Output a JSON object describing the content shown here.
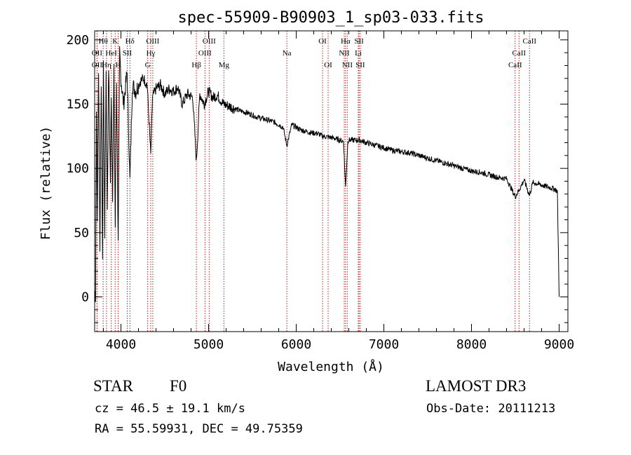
{
  "chart_data": {
    "type": "line",
    "title": "spec-55909-B90903_1_sp03-033.fits",
    "xlabel": "Wavelength (Å)",
    "ylabel": "Flux (relative)",
    "xlim": [
      3700,
      9100
    ],
    "ylim": [
      -27,
      207
    ],
    "xticks": [
      4000,
      5000,
      6000,
      7000,
      8000,
      9000
    ],
    "yticks": [
      0,
      50,
      100,
      150,
      200
    ],
    "line_color": "#000000",
    "marker_color": "#b22222",
    "series": [
      {
        "name": "flux",
        "x": [
          3700,
          3710,
          3720,
          3730,
          3745,
          3760,
          3775,
          3790,
          3800,
          3815,
          3830,
          3845,
          3860,
          3880,
          3890,
          3905,
          3920,
          3935,
          3950,
          3969,
          3985,
          4000,
          4030,
          4070,
          4102,
          4130,
          4170,
          4220,
          4260,
          4300,
          4340,
          4360,
          4400,
          4450,
          4500,
          4550,
          4600,
          4650,
          4700,
          4760,
          4820,
          4861,
          4900,
          4950,
          5000,
          5050,
          5100,
          5170,
          5250,
          5350,
          5450,
          5550,
          5650,
          5750,
          5850,
          5893,
          5950,
          6050,
          6150,
          6250,
          6300,
          6400,
          6450,
          6500,
          6540,
          6563,
          6590,
          6650,
          6720,
          6800,
          6900,
          7000,
          7100,
          7200,
          7300,
          7400,
          7500,
          7600,
          7700,
          7800,
          7900,
          8000,
          8100,
          8200,
          8300,
          8400,
          8498,
          8542,
          8600,
          8662,
          8700,
          8750,
          8800,
          8850,
          8900,
          8950,
          8980,
          8990,
          9000
        ],
        "y": [
          5,
          0,
          150,
          60,
          180,
          40,
          170,
          30,
          185,
          50,
          175,
          70,
          180,
          90,
          160,
          80,
          175,
          55,
          170,
          40,
          190,
          170,
          150,
          175,
          90,
          165,
          160,
          168,
          170,
          165,
          110,
          155,
          162,
          165,
          158,
          162,
          160,
          163,
          150,
          158,
          155,
          105,
          158,
          150,
          160,
          155,
          157,
          150,
          148,
          145,
          143,
          140,
          138,
          136,
          132,
          118,
          134,
          130,
          128,
          127,
          125,
          124,
          123,
          122,
          121,
          85,
          122,
          122,
          122,
          120,
          118,
          116,
          114,
          113,
          112,
          110,
          108,
          106,
          104,
          102,
          100,
          98,
          97,
          95,
          93,
          92,
          78,
          83,
          91,
          79,
          89,
          88,
          87,
          86,
          85,
          84,
          82,
          40,
          0
        ]
      }
    ],
    "annotations": [
      {
        "label": "Hθ",
        "wavelength": 3797,
        "row": 1
      },
      {
        "label": "K",
        "wavelength": 3934,
        "row": 1
      },
      {
        "label": "Hδ",
        "wavelength": 4102,
        "row": 1
      },
      {
        "label": "OIII",
        "wavelength": 4363,
        "row": 1
      },
      {
        "label": "OIII",
        "wavelength": 5007,
        "row": 1
      },
      {
        "label": "OI",
        "wavelength": 6300,
        "row": 1
      },
      {
        "label": "Hα",
        "wavelength": 6563,
        "row": 1
      },
      {
        "label": "SII",
        "wavelength": 6717,
        "row": 1
      },
      {
        "label": "CaII",
        "wavelength": 8662,
        "row": 1
      },
      {
        "label": "OII",
        "wavelength": 3727,
        "row": 2
      },
      {
        "label": "HeI",
        "wavelength": 3889,
        "row": 2
      },
      {
        "label": "SII",
        "wavelength": 4072,
        "row": 2
      },
      {
        "label": "Hγ",
        "wavelength": 4340,
        "row": 2
      },
      {
        "label": "OIII",
        "wavelength": 4959,
        "row": 2
      },
      {
        "label": "Na",
        "wavelength": 5893,
        "row": 2
      },
      {
        "label": "NII",
        "wavelength": 6548,
        "row": 2
      },
      {
        "label": "Li",
        "wavelength": 6708,
        "row": 2
      },
      {
        "label": "CaII",
        "wavelength": 8542,
        "row": 2
      },
      {
        "label": "OII",
        "wavelength": 3727,
        "row": 3
      },
      {
        "label": "Hη",
        "wavelength": 3835,
        "row": 3
      },
      {
        "label": "H",
        "wavelength": 3968,
        "row": 3
      },
      {
        "label": "G",
        "wavelength": 4305,
        "row": 3
      },
      {
        "label": "Hβ",
        "wavelength": 4861,
        "row": 3
      },
      {
        "label": "Mg",
        "wavelength": 5175,
        "row": 3
      },
      {
        "label": "OI",
        "wavelength": 6364,
        "row": 3
      },
      {
        "label": "NII",
        "wavelength": 6583,
        "row": 3
      },
      {
        "label": "SII",
        "wavelength": 6731,
        "row": 3
      },
      {
        "label": "CaII",
        "wavelength": 8498,
        "row": 3
      }
    ]
  },
  "info": {
    "object_class": "STAR",
    "subclass": "F0",
    "survey": "LAMOST DR3",
    "redshift": "cz =  46.5 ± 19.1 km/s",
    "obs_date": "Obs-Date: 20111213",
    "coords": "RA =  55.59931, DEC =  49.75359"
  }
}
